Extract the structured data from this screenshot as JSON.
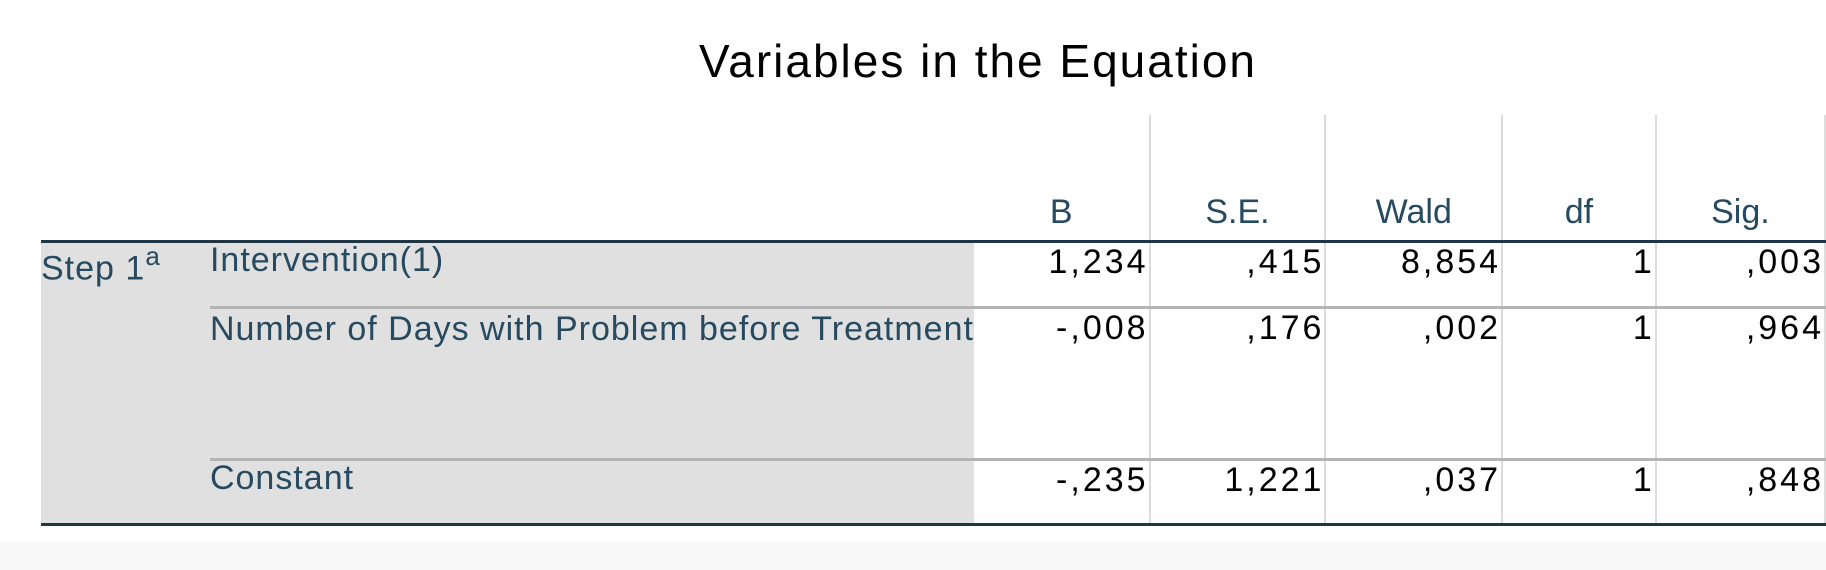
{
  "title": "Variables in the Equation",
  "table": {
    "columns": [
      "B",
      "S.E.",
      "Wald",
      "df",
      "Sig."
    ],
    "step_label": "Step 1",
    "step_footnote": "a",
    "rows": [
      {
        "label": "Intervention(1)",
        "values": [
          "1,234",
          ",415",
          "8,854",
          "1",
          ",003"
        ]
      },
      {
        "label": "Number of Days with Problem before Treatment",
        "values": [
          "-,008",
          ",176",
          ",002",
          "1",
          ",964"
        ]
      },
      {
        "label": "Constant",
        "values": [
          "-,235",
          "1,221",
          ",037",
          "1",
          ",848"
        ]
      }
    ]
  }
}
